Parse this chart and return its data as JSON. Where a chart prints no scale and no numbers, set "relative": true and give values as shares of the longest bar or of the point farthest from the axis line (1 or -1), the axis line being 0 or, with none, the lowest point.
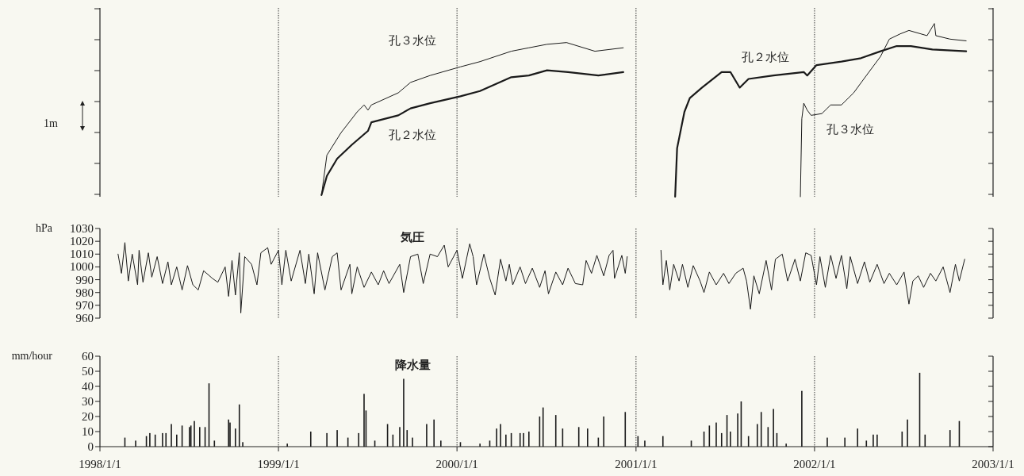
{
  "chart_data": [
    {
      "type": "line",
      "relative": true,
      "xlim": [
        "1998-01-01",
        "2003-01-01"
      ],
      "tick_labels": false,
      "ref_lines": [
        {
          "axis": "x",
          "value": "1999-01-01",
          "line_style": "dotted"
        },
        {
          "axis": "x",
          "value": "2000-01-01",
          "line_style": "dotted"
        },
        {
          "axis": "x",
          "value": "2001-01-01",
          "line_style": "dotted"
        },
        {
          "axis": "x",
          "value": "2002-01-01",
          "line_style": "dotted"
        }
      ],
      "annotations": [
        "1m",
        "孔３水位",
        "孔２水位",
        "孔２水位",
        "孔３水位"
      ],
      "series": [
        {
          "color": "#1a1a1a",
          "x": [
            "1999-03-30",
            "1999-04-10",
            "1999-05-09",
            "1999-06-11",
            "1999-06-25",
            "1999-07-03",
            "1999-07-10",
            "1999-09-03",
            "1999-09-28",
            "1999-11-07",
            "2000-01-08",
            "2000-02-17",
            "2000-04-21",
            "2000-05-27",
            "2000-07-03",
            "2000-08-12",
            "2000-10-09",
            "2000-12-06",
            null,
            "2001-12-03",
            "2001-12-06",
            "2001-12-10",
            "2001-12-17",
            "2001-12-25",
            "2002-01-16",
            "2002-02-03",
            "2002-02-25",
            "2002-03-22",
            "2002-04-17",
            "2002-05-16",
            "2002-06-03",
            "2002-06-25",
            "2002-07-13",
            "2002-08-19",
            "2002-09-03",
            "2002-09-06",
            "2002-10-05",
            "2002-11-07"
          ],
          "values": [
            0.01,
            0.24,
            0.37,
            0.49,
            0.53,
            0.5,
            0.53,
            0.6,
            0.66,
            0.7,
            0.75,
            0.78,
            0.84,
            0.86,
            0.88,
            0.89,
            0.84,
            0.86,
            null,
            0,
            0.45,
            0.54,
            0.5,
            0.47,
            0.48,
            0.53,
            0.53,
            0.6,
            0.7,
            0.81,
            0.91,
            0.94,
            0.96,
            0.93,
            1,
            0.93,
            0.91,
            0.9
          ]
        },
        {
          "color": "#1a1a1a",
          "x": [
            "1999-03-30",
            "1999-04-10",
            "1999-05-01",
            "1999-05-31",
            "1999-07-03",
            "1999-07-10",
            "1999-09-03",
            "1999-09-28",
            "1999-11-07",
            "2000-01-08",
            "2000-02-17",
            "2000-04-21",
            "2000-05-27",
            "2000-07-03",
            "2000-08-15",
            "2000-10-16",
            "2000-12-06",
            null,
            "2001-03-22",
            "2001-03-26",
            "2001-04-10",
            "2001-04-21",
            "2001-05-16",
            "2001-06-25",
            "2001-07-13",
            "2001-08-01",
            "2001-08-19",
            "2001-10-09",
            "2001-12-10",
            "2001-12-17",
            "2002-01-05",
            "2002-02-25",
            "2002-04-06",
            "2002-05-16",
            "2002-06-18",
            "2002-07-17",
            "2002-08-30",
            "2002-11-07"
          ],
          "values": [
            0.01,
            0.12,
            0.22,
            0.3,
            0.38,
            0.43,
            0.47,
            0.51,
            0.54,
            0.58,
            0.61,
            0.69,
            0.7,
            0.73,
            0.72,
            0.7,
            0.72,
            null,
            0,
            0.28,
            0.49,
            0.57,
            0.63,
            0.72,
            0.72,
            0.63,
            0.68,
            0.7,
            0.72,
            0.7,
            0.76,
            0.78,
            0.8,
            0.84,
            0.87,
            0.87,
            0.85,
            0.84
          ]
        }
      ]
    },
    {
      "type": "line",
      "title": "気圧",
      "ylabel": "hPa",
      "xlim": [
        "1998-01-01",
        "2003-01-01"
      ],
      "ylim": [
        960,
        1030
      ],
      "yticks": [
        960,
        970,
        980,
        990,
        1000,
        1010,
        1020,
        1030
      ],
      "tick_labels": "y",
      "ref_lines": [
        {
          "axis": "x",
          "value": "1999-01-01",
          "line_style": "dotted"
        },
        {
          "axis": "x",
          "value": "2000-01-01",
          "line_style": "dotted"
        },
        {
          "axis": "x",
          "value": "2001-01-01",
          "line_style": "dotted"
        },
        {
          "axis": "x",
          "value": "2002-01-01",
          "line_style": "dotted"
        }
      ],
      "series": [
        {
          "color": "#1a1a1a",
          "x": [
            "1998-02-07",
            "1998-02-14",
            "1998-02-21",
            "1998-02-28",
            "1998-03-08",
            "1998-03-19",
            "1998-03-22",
            "1998-03-30",
            "1998-04-10",
            "1998-04-17",
            "1998-04-28",
            "1998-05-09",
            "1998-05-20",
            "1998-05-27",
            "1998-06-07",
            "1998-06-18",
            "1998-06-29",
            "1998-07-10",
            "1998-07-21",
            "1998-08-01",
            "1998-08-19",
            "1998-08-30",
            "1998-09-14",
            "1998-09-21",
            "1998-09-28",
            "1998-10-05",
            "1998-10-13",
            "1998-10-16",
            "1998-10-24",
            "1998-11-07",
            "1998-11-18",
            "1998-11-26",
            "1998-12-10",
            "1998-12-17",
            "1999-01-01",
            "1999-01-08",
            "1999-01-16",
            "1999-01-27",
            "1999-02-14",
            "1999-02-25",
            "1999-03-04",
            "1999-03-15",
            "1999-03-22",
            "1999-04-06",
            "1999-04-21",
            "1999-05-01",
            "1999-05-09",
            "1999-05-27",
            "1999-05-31",
            "1999-06-11",
            "1999-06-25",
            "1999-07-10",
            "1999-07-24",
            "1999-08-04",
            "1999-08-15",
            "1999-09-06",
            "1999-09-14",
            "1999-09-28",
            "1999-10-13",
            "1999-10-24",
            "1999-11-07",
            "1999-11-22",
            "1999-12-06",
            "1999-12-14",
            "2000-01-01",
            "2000-01-12",
            "2000-01-27",
            "2000-02-03",
            "2000-02-10",
            "2000-02-25",
            "2000-03-08",
            "2000-03-19",
            "2000-03-30",
            "2000-04-10",
            "2000-04-17",
            "2000-04-24",
            "2000-05-09",
            "2000-05-20",
            "2000-06-03",
            "2000-06-18",
            "2000-06-29",
            "2000-07-06",
            "2000-07-21",
            "2000-08-04",
            "2000-08-15",
            "2000-08-30",
            "2000-09-14",
            "2000-09-21",
            "2000-10-02",
            "2000-10-13",
            "2000-10-27",
            "2000-11-07",
            "2000-11-15",
            "2000-11-18",
            "2000-12-03",
            "2000-12-10",
            "2000-12-14",
            null,
            "2001-02-21",
            "2001-02-25",
            "2001-03-04",
            "2001-03-11",
            "2001-03-19",
            "2001-03-30",
            "2001-04-06",
            "2001-04-17",
            "2001-04-28",
            "2001-05-12",
            "2001-05-20",
            "2001-05-31",
            "2001-06-14",
            "2001-06-29",
            "2001-07-10",
            "2001-07-24",
            "2001-08-08",
            "2001-08-15",
            "2001-08-23",
            "2001-08-30",
            "2001-09-10",
            "2001-09-24",
            "2001-10-05",
            "2001-10-13",
            "2001-10-27",
            "2001-11-07",
            "2001-11-22",
            "2001-12-03",
            "2001-12-14",
            "2001-12-25",
            "2002-01-05",
            "2002-01-12",
            "2002-01-23",
            "2002-02-03",
            "2002-02-14",
            "2002-02-25",
            "2002-03-08",
            "2002-03-15",
            "2002-03-30",
            "2002-04-13",
            "2002-04-24",
            "2002-05-09",
            "2002-05-23",
            "2002-06-03",
            "2002-06-18",
            "2002-07-03",
            "2002-07-13",
            "2002-07-21",
            "2002-08-01",
            "2002-08-12",
            "2002-08-26",
            "2002-09-06",
            "2002-09-21",
            "2002-10-05",
            "2002-10-16",
            "2002-10-24",
            "2002-11-04"
          ],
          "values": [
            1010,
            995,
            1019,
            989,
            1010,
            986,
            1013,
            988,
            1011,
            992,
            1008,
            987,
            1004,
            986,
            1000,
            982,
            1001,
            986,
            982,
            997,
            991,
            988,
            1000,
            977,
            1005,
            978,
            1011,
            964,
            1008,
            1002,
            986,
            1011,
            1015,
            1002,
            1013,
            986,
            1013,
            989,
            1013,
            987,
            1010,
            979,
            1011,
            982,
            1008,
            1011,
            982,
            1002,
            979,
            1000,
            984,
            996,
            986,
            997,
            987,
            1002,
            980,
            1008,
            1010,
            987,
            1010,
            1008,
            1017,
            1000,
            1013,
            991,
            1018,
            1008,
            986,
            1010,
            991,
            978,
            1006,
            989,
            1002,
            986,
            1000,
            987,
            999,
            984,
            997,
            979,
            996,
            986,
            999,
            987,
            986,
            1005,
            995,
            1009,
            993,
            1009,
            1013,
            991,
            1009,
            995,
            1008,
            null,
            1013,
            986,
            1005,
            982,
            1002,
            989,
            1002,
            984,
            1001,
            989,
            980,
            996,
            986,
            995,
            987,
            995,
            999,
            989,
            967,
            993,
            979,
            1005,
            982,
            1006,
            1010,
            989,
            1006,
            989,
            1011,
            1009,
            986,
            1008,
            984,
            1009,
            991,
            1009,
            983,
            1008,
            987,
            1004,
            988,
            1002,
            987,
            995,
            986,
            996,
            971,
            989,
            993,
            984,
            995,
            989,
            1000,
            980,
            1002,
            989,
            1006
          ]
        }
      ]
    },
    {
      "type": "bar",
      "title": "降水量",
      "ylabel": "mm/hour",
      "xlim": [
        "1998-01-01",
        "2003-01-01"
      ],
      "xticks": [
        {
          "value": "1998-01-01",
          "label": "1998/1/1"
        },
        {
          "value": "1999-01-01",
          "label": "1999/1/1"
        },
        {
          "value": "2000-01-01",
          "label": "2000/1/1"
        },
        {
          "value": "2001-01-01",
          "label": "2001/1/1"
        },
        {
          "value": "2002-01-01",
          "label": "2002/1/1"
        },
        {
          "value": "2003-01-01",
          "label": "2003/1/1"
        }
      ],
      "ylim": [
        0,
        60
      ],
      "yticks": [
        0,
        10,
        20,
        30,
        40,
        50,
        60
      ],
      "ref_lines": [
        {
          "axis": "x",
          "value": "1999-01-01",
          "line_style": "dotted"
        },
        {
          "axis": "x",
          "value": "2000-01-01",
          "line_style": "dotted"
        },
        {
          "axis": "x",
          "value": "2001-01-01",
          "line_style": "dotted"
        },
        {
          "axis": "x",
          "value": "2002-01-01",
          "line_style": "dotted"
        }
      ],
      "series": [
        {
          "color": "#1a1a1a",
          "x": [
            "1998-02-21",
            "1998-03-15",
            "1998-04-06",
            "1998-04-13",
            "1998-04-24",
            "1998-05-09",
            "1998-05-16",
            "1998-05-27",
            "1998-06-07",
            "1998-06-18",
            "1998-07-03",
            "1998-07-06",
            "1998-07-13",
            "1998-07-24",
            "1998-08-04",
            "1998-08-12",
            "1998-08-23",
            "1998-09-21",
            "1998-09-24",
            "1998-10-05",
            "1998-10-13",
            "1998-10-20",
            "1999-01-19",
            "1999-03-08",
            "1999-04-10",
            "1999-05-01",
            "1999-05-23",
            "1999-06-14",
            "1999-06-25",
            "1999-06-29",
            "1999-07-17",
            "1999-08-12",
            "1999-08-23",
            "1999-09-06",
            "1999-09-14",
            "1999-09-21",
            "1999-10-02",
            "1999-10-31",
            "1999-11-15",
            "1999-11-29",
            "2000-01-08",
            "2000-02-17",
            "2000-03-08",
            "2000-03-22",
            "2000-03-30",
            "2000-04-10",
            "2000-04-21",
            "2000-05-09",
            "2000-05-16",
            "2000-05-27",
            "2000-06-18",
            "2000-06-25",
            "2000-07-21",
            "2000-08-04",
            "2000-09-06",
            "2000-09-24",
            "2000-10-16",
            "2000-10-27",
            "2000-12-10",
            "2001-01-05",
            "2001-01-19",
            "2001-02-25",
            "2001-04-24",
            "2001-05-20",
            "2001-05-31",
            "2001-06-14",
            "2001-06-25",
            "2001-07-06",
            "2001-07-13",
            "2001-07-28",
            "2001-08-04",
            "2001-08-19",
            "2001-09-06",
            "2001-09-14",
            "2001-09-28",
            "2001-10-09",
            "2001-10-16",
            "2001-11-04",
            "2001-12-06",
            "2002-01-27",
            "2002-03-04",
            "2002-03-30",
            "2002-04-17",
            "2002-05-01",
            "2002-05-09",
            "2002-06-29",
            "2002-07-10",
            "2002-08-04",
            "2002-08-15",
            "2002-10-05",
            "2002-10-24"
          ],
          "values": [
            6,
            4,
            7,
            9,
            8,
            9,
            9,
            15,
            8,
            14,
            13,
            14,
            17,
            13,
            13,
            42,
            4,
            18,
            16,
            12,
            28,
            3,
            2,
            10,
            9,
            11,
            6,
            9,
            35,
            24,
            4,
            15,
            8,
            13,
            45,
            11,
            6,
            15,
            18,
            4,
            3,
            2,
            4,
            12,
            15,
            8,
            9,
            9,
            9,
            10,
            20,
            26,
            21,
            12,
            13,
            12,
            6,
            20,
            23,
            7,
            4,
            7,
            4,
            10,
            14,
            16,
            9,
            21,
            10,
            22,
            30,
            7,
            15,
            23,
            13,
            25,
            9,
            2,
            37,
            6,
            6,
            12,
            4,
            8,
            8,
            10,
            18,
            49,
            8,
            11,
            17
          ]
        }
      ]
    }
  ]
}
